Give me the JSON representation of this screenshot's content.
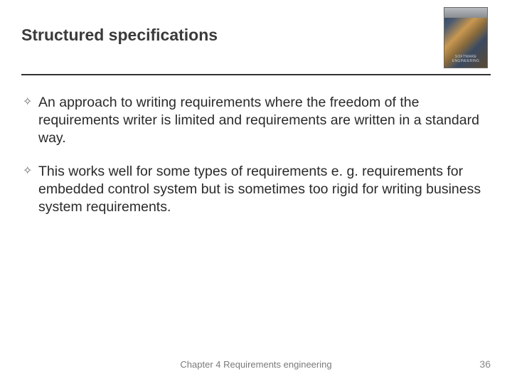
{
  "colors": {
    "background": "#ffffff",
    "text": "#3a3a3a",
    "rule": "#333333",
    "footer": "#7a7a7a",
    "pagenum": "#888888",
    "marker": "#6a6a6a"
  },
  "typography": {
    "title_fontsize": 23,
    "body_fontsize": 19.5,
    "footer_fontsize": 13,
    "font_family": "Arial"
  },
  "title": "Structured specifications",
  "book_cover_label": "SOFTWARE ENGINEERING",
  "bullets": [
    "An approach to writing requirements where the freedom of the requirements writer is limited and requirements are written in a standard way.",
    "This works well for some types of requirements e. g. requirements for embedded control system but is sometimes too rigid for writing business system requirements."
  ],
  "bullet_marker": "✧",
  "footer": "Chapter 4 Requirements engineering",
  "page_number": "36"
}
